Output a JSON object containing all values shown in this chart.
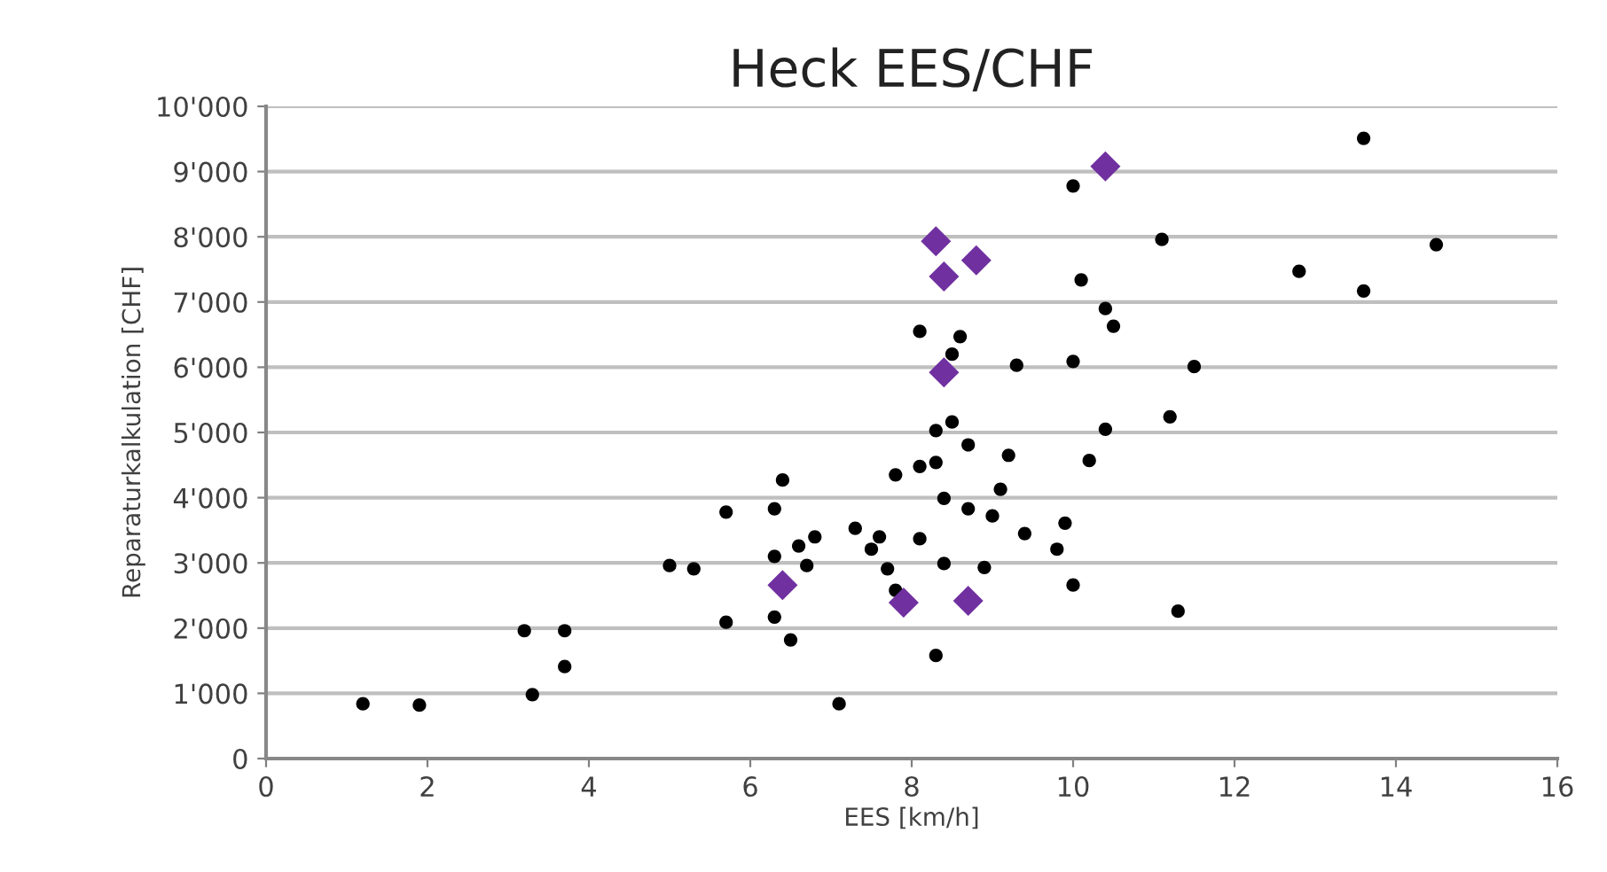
{
  "chart_data": {
    "type": "scatter",
    "title": "Heck EES/CHF",
    "xlabel": "EES [km/h]",
    "ylabel": "Reparaturkalkulation [CHF]",
    "xlim": [
      0,
      16
    ],
    "xticks": [
      0,
      2,
      4,
      6,
      8,
      10,
      12,
      14,
      16
    ],
    "ylim": [
      0,
      10000
    ],
    "yticks": [
      {
        "value": 0,
        "label": "0"
      },
      {
        "value": 1000,
        "label": "1'000"
      },
      {
        "value": 2000,
        "label": "2'000"
      },
      {
        "value": 3000,
        "label": "3'000"
      },
      {
        "value": 4000,
        "label": "4'000"
      },
      {
        "value": 5000,
        "label": "5'000"
      },
      {
        "value": 6000,
        "label": "6'000"
      },
      {
        "value": 7000,
        "label": "7'000"
      },
      {
        "value": 8000,
        "label": "8'000"
      },
      {
        "value": 9000,
        "label": "9'000"
      },
      {
        "value": 10000,
        "label": "10'000"
      }
    ],
    "grid": "y",
    "series": [
      {
        "color": "#000000",
        "marker": "circle",
        "x": [
          1.2,
          1.9,
          3.2,
          3.3,
          3.7,
          3.7,
          5.0,
          5.3,
          5.7,
          5.7,
          6.3,
          6.4,
          6.3,
          6.3,
          6.5,
          6.6,
          6.7,
          6.8,
          7.1,
          7.3,
          7.6,
          7.5,
          7.7,
          7.8,
          7.8,
          8.1,
          8.1,
          8.1,
          8.3,
          8.3,
          8.3,
          8.4,
          8.4,
          8.5,
          8.7,
          8.7,
          8.5,
          8.6,
          8.9,
          9.0,
          9.1,
          9.2,
          9.3,
          9.4,
          9.8,
          9.9,
          10.0,
          10.0,
          10.0,
          10.1,
          10.4,
          10.5,
          10.2,
          10.4,
          11.2,
          11.1,
          11.3,
          11.5,
          12.8,
          13.6,
          13.6,
          14.5
        ],
        "values": [
          840,
          820,
          1960,
          980,
          1960,
          1410,
          2960,
          2910,
          3780,
          2090,
          3830,
          4270,
          3100,
          2170,
          1820,
          3260,
          2960,
          3400,
          840,
          3530,
          3400,
          3210,
          2910,
          2580,
          4350,
          3370,
          4480,
          6550,
          4540,
          5030,
          1580,
          3990,
          2990,
          5160,
          4810,
          3830,
          6200,
          6470,
          2930,
          3720,
          4130,
          4650,
          6030,
          3450,
          3210,
          3610,
          2660,
          6090,
          8780,
          7340,
          6900,
          6630,
          4570,
          5050,
          5240,
          7960,
          2260,
          6010,
          7470,
          9510,
          7170,
          7880
        ]
      },
      {
        "color": "#7030a0",
        "marker": "diamond",
        "x": [
          8.3,
          8.8,
          8.4,
          8.4,
          10.4,
          6.4,
          7.9,
          8.7
        ],
        "values": [
          7930,
          7640,
          7390,
          5920,
          9080,
          2660,
          2390,
          2420
        ]
      }
    ]
  }
}
